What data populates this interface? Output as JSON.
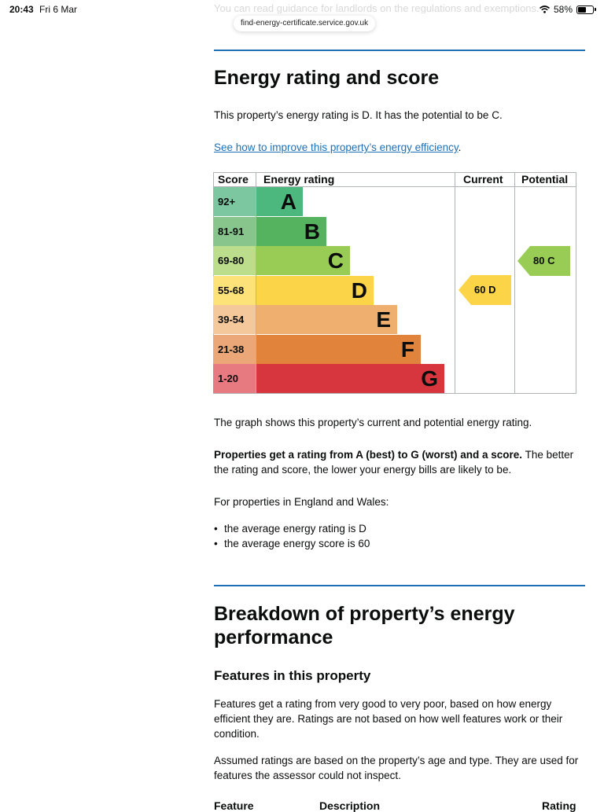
{
  "status_bar": {
    "time": "20:43",
    "date": "Fri 6 Mar",
    "battery": "58%"
  },
  "browser": {
    "faded_text": "You can read guidance for landlords on the regulations and exemptions.",
    "url": "find-energy-certificate.service.gov.uk"
  },
  "energy_section": {
    "heading": "Energy rating and score",
    "intro": "This property’s energy rating is D. It has the potential to be C.",
    "link_text": "See how to improve this property’s energy efficiency",
    "link_after": "."
  },
  "chart_data": {
    "type": "table",
    "columns": [
      "Score",
      "Energy rating",
      "Current",
      "Potential"
    ],
    "bands": [
      {
        "score": "92+",
        "letter": "A",
        "color": "#4db87e",
        "score_bg": "#7cc7a0"
      },
      {
        "score": "81-91",
        "letter": "B",
        "color": "#55b360",
        "score_bg": "#87c58d"
      },
      {
        "score": "69-80",
        "letter": "C",
        "color": "#99cc55",
        "score_bg": "#bbdd8c"
      },
      {
        "score": "55-68",
        "letter": "D",
        "color": "#fcd447",
        "score_bg": "#fde27a"
      },
      {
        "score": "39-54",
        "letter": "E",
        "color": "#efaf6f",
        "score_bg": "#f4c89b"
      },
      {
        "score": "21-38",
        "letter": "F",
        "color": "#e2833b",
        "score_bg": "#eca778"
      },
      {
        "score": "1-20",
        "letter": "G",
        "color": "#d8363e",
        "score_bg": "#e67a80"
      }
    ],
    "current": {
      "score": 60,
      "letter": "D",
      "label": "60  D",
      "color": "#fcd447"
    },
    "potential": {
      "score": 80,
      "letter": "C",
      "label": "80  C",
      "color": "#99cc55"
    }
  },
  "explanation": {
    "graph_text": "The graph shows this property’s current and potential energy rating.",
    "ratings_bold": "Properties get a rating from A (best) to G (worst) and a score.",
    "ratings_rest": " The better the rating and score, the lower your energy bills are likely to be.",
    "england_wales": "For properties in England and Wales:",
    "bullets": [
      "the average energy rating is D",
      "the average energy score is 60"
    ]
  },
  "breakdown_section": {
    "heading": "Breakdown of property’s energy performance",
    "subheading": "Features in this property",
    "para1": "Features get a rating from very good to very poor, based on how energy efficient they are. Ratings are not based on how well features work or their condition.",
    "para2": "Assumed ratings are based on the property’s age and type. They are used for features the assessor could not inspect.",
    "table_headers": [
      "Feature",
      "Description",
      "Rating"
    ]
  }
}
